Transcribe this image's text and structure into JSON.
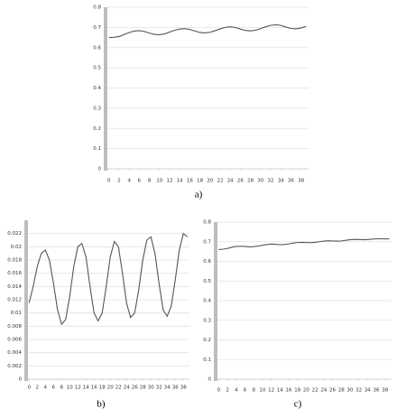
{
  "chart_data": [
    {
      "type": "line",
      "caption": "a)",
      "x": [
        0,
        1,
        2,
        3,
        4,
        5,
        6,
        7,
        8,
        9,
        10,
        11,
        12,
        13,
        14,
        15,
        16,
        17,
        18,
        19,
        20,
        21,
        22,
        23,
        24,
        25,
        26,
        27,
        28,
        29,
        30,
        31,
        32,
        33,
        34,
        35,
        36,
        37,
        38,
        39
      ],
      "values": [
        0.65,
        0.651,
        0.655,
        0.665,
        0.675,
        0.682,
        0.684,
        0.68,
        0.672,
        0.665,
        0.664,
        0.668,
        0.677,
        0.686,
        0.692,
        0.694,
        0.69,
        0.682,
        0.675,
        0.673,
        0.676,
        0.684,
        0.693,
        0.7,
        0.703,
        0.7,
        0.692,
        0.685,
        0.683,
        0.686,
        0.694,
        0.703,
        0.71,
        0.713,
        0.71,
        0.702,
        0.695,
        0.693,
        0.697,
        0.705
      ],
      "color": "#555555",
      "xlim": [
        -0.5,
        39.5
      ],
      "xticks": [
        0,
        2,
        4,
        6,
        8,
        10,
        12,
        14,
        16,
        18,
        20,
        22,
        24,
        26,
        28,
        30,
        32,
        34,
        36,
        38
      ],
      "ylim": [
        0,
        0.8
      ],
      "yticks": [
        0,
        0.1,
        0.2,
        0.3,
        0.4,
        0.5,
        0.6,
        0.7,
        0.8
      ],
      "grid": true
    },
    {
      "type": "line",
      "caption": "b)",
      "x": [
        0,
        1,
        2,
        3,
        4,
        5,
        6,
        7,
        8,
        9,
        10,
        11,
        12,
        13,
        14,
        15,
        16,
        17,
        18,
        19,
        20,
        21,
        22,
        23,
        24,
        25,
        26,
        27,
        28,
        29,
        30,
        31,
        32,
        33,
        34,
        35,
        36,
        37,
        38,
        39
      ],
      "values": [
        0.0115,
        0.014,
        0.017,
        0.019,
        0.0195,
        0.018,
        0.0145,
        0.0105,
        0.0083,
        0.009,
        0.0125,
        0.017,
        0.02,
        0.0205,
        0.0185,
        0.014,
        0.01,
        0.0088,
        0.01,
        0.014,
        0.0185,
        0.0208,
        0.02,
        0.016,
        0.0115,
        0.0093,
        0.01,
        0.0135,
        0.018,
        0.021,
        0.0215,
        0.019,
        0.0145,
        0.0105,
        0.0095,
        0.011,
        0.015,
        0.0195,
        0.022,
        0.0215
      ],
      "color": "#555555",
      "xlim": [
        -0.5,
        39.5
      ],
      "xticks": [
        0,
        2,
        4,
        6,
        8,
        10,
        12,
        14,
        16,
        18,
        20,
        22,
        24,
        26,
        28,
        30,
        32,
        34,
        36,
        38
      ],
      "ylim": [
        0,
        0.024
      ],
      "yticks": [
        0,
        0.002,
        0.004,
        0.006,
        0.008,
        0.01,
        0.012,
        0.014,
        0.016,
        0.018,
        0.02,
        0.022
      ],
      "grid": true
    },
    {
      "type": "line",
      "caption": "c)",
      "x": [
        0,
        1,
        2,
        3,
        4,
        5,
        6,
        7,
        8,
        9,
        10,
        11,
        12,
        13,
        14,
        15,
        16,
        17,
        18,
        19,
        20,
        21,
        22,
        23,
        24,
        25,
        26,
        27,
        28,
        29,
        30,
        31,
        32,
        33,
        34,
        35,
        36,
        37,
        38,
        39
      ],
      "values": [
        0.66,
        0.662,
        0.666,
        0.672,
        0.676,
        0.677,
        0.676,
        0.674,
        0.675,
        0.678,
        0.682,
        0.686,
        0.688,
        0.687,
        0.685,
        0.686,
        0.689,
        0.693,
        0.696,
        0.697,
        0.696,
        0.695,
        0.697,
        0.7,
        0.703,
        0.705,
        0.704,
        0.703,
        0.704,
        0.707,
        0.71,
        0.712,
        0.711,
        0.71,
        0.711,
        0.713,
        0.715,
        0.715,
        0.714,
        0.715
      ],
      "color": "#555555",
      "xlim": [
        -0.5,
        39.5
      ],
      "xticks": [
        0,
        2,
        4,
        6,
        8,
        10,
        12,
        14,
        16,
        18,
        20,
        22,
        24,
        26,
        28,
        30,
        32,
        34,
        36,
        38
      ],
      "ylim": [
        0,
        0.8
      ],
      "yticks": [
        0,
        0.1,
        0.2,
        0.3,
        0.4,
        0.5,
        0.6,
        0.7,
        0.8
      ],
      "grid": true
    }
  ]
}
